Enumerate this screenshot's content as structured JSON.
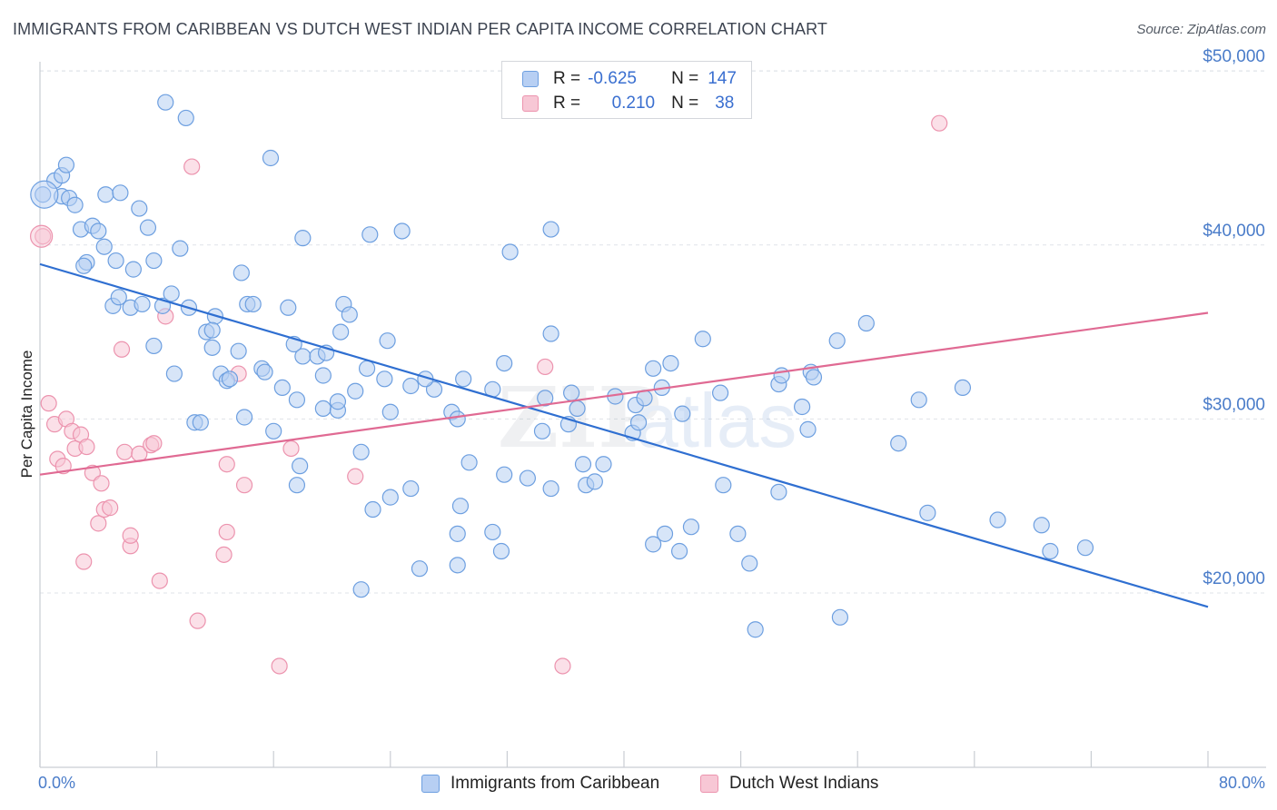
{
  "title": "IMMIGRANTS FROM CARIBBEAN VS DUTCH WEST INDIAN PER CAPITA INCOME CORRELATION CHART",
  "source": "Source: ZipAtlas.com",
  "watermark": {
    "zip": "ZIP",
    "atlas": "atlas"
  },
  "stats": {
    "caribbean": {
      "r_label": "R =",
      "r_value": "-0.625",
      "n_label": "N =",
      "n_value": "147"
    },
    "dutch": {
      "r_label": "R =",
      "r_value": "0.210",
      "n_label": "N =",
      "n_value": "38"
    }
  },
  "legend": {
    "caribbean": "Immigrants from Caribbean",
    "dutch": "Dutch West Indians"
  },
  "chart_data": {
    "type": "scatter",
    "title": "IMMIGRANTS FROM CARIBBEAN VS DUTCH WEST INDIAN PER CAPITA INCOME CORRELATION CHART",
    "xlabel": "",
    "ylabel": "Per Capita Income",
    "xlim": [
      0,
      80
    ],
    "ylim": [
      11000,
      52000
    ],
    "x_tick_labels": [
      "0.0%",
      "80.0%"
    ],
    "y_ticks": [
      20000,
      30000,
      40000,
      50000
    ],
    "y_tick_labels": [
      "$20,000",
      "$30,000",
      "$40,000",
      "$50,000"
    ],
    "grid": true,
    "legend_position": "bottom",
    "colors": {
      "caribbean": "#6d9fe0",
      "caribbean_fill": "#b7cff3",
      "caribbean_line": "#2f6fd1",
      "dutch": "#ec93ae",
      "dutch_fill": "#f7c7d5",
      "dutch_line": "#e06a93"
    },
    "series": [
      {
        "name": "Immigrants from Caribbean",
        "trend": {
          "x": [
            0,
            80
          ],
          "y": [
            38900,
            19200
          ]
        },
        "points": [
          [
            0.2,
            42900
          ],
          [
            1.0,
            43700
          ],
          [
            1.5,
            44000
          ],
          [
            1.8,
            44600
          ],
          [
            1.5,
            42800
          ],
          [
            2.0,
            42700
          ],
          [
            2.4,
            42300
          ],
          [
            4.5,
            42900
          ],
          [
            5.5,
            43000
          ],
          [
            6.8,
            42100
          ],
          [
            2.8,
            40900
          ],
          [
            3.6,
            41100
          ],
          [
            4.0,
            40800
          ],
          [
            7.4,
            41000
          ],
          [
            4.4,
            39900
          ],
          [
            9.6,
            39800
          ],
          [
            3.2,
            39000
          ],
          [
            3.0,
            38800
          ],
          [
            5.2,
            39100
          ],
          [
            6.4,
            38600
          ],
          [
            7.8,
            39100
          ],
          [
            8.6,
            48200
          ],
          [
            10.0,
            47300
          ],
          [
            15.8,
            45000
          ],
          [
            18.0,
            40400
          ],
          [
            22.6,
            40600
          ],
          [
            24.8,
            40800
          ],
          [
            32.2,
            39600
          ],
          [
            35.0,
            40900
          ],
          [
            13.8,
            38400
          ],
          [
            5.0,
            36500
          ],
          [
            5.4,
            37000
          ],
          [
            6.2,
            36400
          ],
          [
            7.0,
            36600
          ],
          [
            8.4,
            36500
          ],
          [
            9.0,
            37200
          ],
          [
            10.2,
            36400
          ],
          [
            12.0,
            35900
          ],
          [
            14.2,
            36600
          ],
          [
            14.6,
            36600
          ],
          [
            17.0,
            36400
          ],
          [
            20.8,
            36600
          ],
          [
            21.2,
            36000
          ],
          [
            11.4,
            35000
          ],
          [
            11.8,
            35100
          ],
          [
            20.6,
            35000
          ],
          [
            7.8,
            34200
          ],
          [
            11.8,
            34100
          ],
          [
            13.6,
            33900
          ],
          [
            17.4,
            34300
          ],
          [
            18.0,
            33600
          ],
          [
            19.0,
            33600
          ],
          [
            19.6,
            33800
          ],
          [
            23.8,
            34500
          ],
          [
            9.2,
            32600
          ],
          [
            12.4,
            32600
          ],
          [
            12.8,
            32200
          ],
          [
            13.0,
            32300
          ],
          [
            15.2,
            32900
          ],
          [
            15.4,
            32700
          ],
          [
            19.4,
            32500
          ],
          [
            22.4,
            32900
          ],
          [
            23.6,
            32300
          ],
          [
            29.0,
            32300
          ],
          [
            31.8,
            33200
          ],
          [
            34.4,
            29300
          ],
          [
            16.6,
            31800
          ],
          [
            17.6,
            31100
          ],
          [
            19.4,
            30600
          ],
          [
            20.4,
            30500
          ],
          [
            20.4,
            31000
          ],
          [
            21.6,
            31600
          ],
          [
            25.4,
            31900
          ],
          [
            27.0,
            31700
          ],
          [
            28.2,
            30400
          ],
          [
            28.6,
            30000
          ],
          [
            31.0,
            31700
          ],
          [
            34.6,
            31200
          ],
          [
            10.6,
            29800
          ],
          [
            11.0,
            29800
          ],
          [
            14.0,
            30100
          ],
          [
            16.0,
            29300
          ],
          [
            22.0,
            28100
          ],
          [
            24.0,
            30400
          ],
          [
            26.4,
            32300
          ],
          [
            29.4,
            27500
          ],
          [
            31.8,
            26800
          ],
          [
            33.4,
            26600
          ],
          [
            35.0,
            26000
          ],
          [
            36.2,
            29700
          ],
          [
            37.2,
            27400
          ],
          [
            36.8,
            30600
          ],
          [
            37.4,
            26200
          ],
          [
            38.0,
            26400
          ],
          [
            38.6,
            27400
          ],
          [
            17.6,
            26200
          ],
          [
            17.8,
            27300
          ],
          [
            22.8,
            24800
          ],
          [
            24.0,
            25500
          ],
          [
            25.4,
            26000
          ],
          [
            28.8,
            25000
          ],
          [
            28.6,
            23400
          ],
          [
            26.0,
            21400
          ],
          [
            28.6,
            21600
          ],
          [
            31.0,
            23500
          ],
          [
            31.6,
            22400
          ],
          [
            22.0,
            20200
          ],
          [
            35.0,
            34900
          ],
          [
            36.4,
            31500
          ],
          [
            39.4,
            31300
          ],
          [
            40.6,
            29200
          ],
          [
            40.8,
            30800
          ],
          [
            41.0,
            29800
          ],
          [
            41.4,
            31200
          ],
          [
            42.0,
            32900
          ],
          [
            42.6,
            31800
          ],
          [
            43.2,
            33200
          ],
          [
            44.0,
            30300
          ],
          [
            44.6,
            23800
          ],
          [
            45.4,
            34600
          ],
          [
            42.0,
            22800
          ],
          [
            42.8,
            23400
          ],
          [
            43.8,
            22400
          ],
          [
            46.8,
            26200
          ],
          [
            47.0,
            47800
          ],
          [
            47.8,
            23400
          ],
          [
            48.6,
            21700
          ],
          [
            49.0,
            17900
          ],
          [
            46.6,
            31500
          ],
          [
            50.6,
            25800
          ],
          [
            50.6,
            32000
          ],
          [
            50.8,
            32500
          ],
          [
            52.2,
            30700
          ],
          [
            52.6,
            29400
          ],
          [
            52.8,
            32700
          ],
          [
            53.0,
            32400
          ],
          [
            54.6,
            34500
          ],
          [
            54.8,
            18600
          ],
          [
            56.6,
            35500
          ],
          [
            58.8,
            28600
          ],
          [
            60.2,
            31100
          ],
          [
            60.8,
            24600
          ],
          [
            63.2,
            31800
          ],
          [
            65.6,
            24200
          ],
          [
            68.6,
            23900
          ],
          [
            69.2,
            22400
          ],
          [
            71.6,
            22600
          ]
        ]
      },
      {
        "name": "Dutch West Indians",
        "trend": {
          "x": [
            0,
            80
          ],
          "y": [
            26800,
            36100
          ]
        },
        "points": [
          [
            0.2,
            40500
          ],
          [
            0.6,
            30900
          ],
          [
            1.0,
            29700
          ],
          [
            1.2,
            27700
          ],
          [
            1.6,
            27300
          ],
          [
            1.8,
            30000
          ],
          [
            2.2,
            29300
          ],
          [
            2.4,
            28300
          ],
          [
            2.8,
            29100
          ],
          [
            3.2,
            28400
          ],
          [
            3.0,
            21800
          ],
          [
            3.6,
            26900
          ],
          [
            4.0,
            24000
          ],
          [
            4.2,
            26300
          ],
          [
            4.4,
            24800
          ],
          [
            4.8,
            24900
          ],
          [
            5.6,
            34000
          ],
          [
            5.8,
            28100
          ],
          [
            6.2,
            22700
          ],
          [
            6.2,
            23300
          ],
          [
            6.8,
            28000
          ],
          [
            7.6,
            28500
          ],
          [
            7.8,
            28600
          ],
          [
            8.2,
            20700
          ],
          [
            8.6,
            35900
          ],
          [
            10.4,
            44500
          ],
          [
            10.8,
            18400
          ],
          [
            12.8,
            27400
          ],
          [
            12.8,
            23500
          ],
          [
            12.6,
            22200
          ],
          [
            13.6,
            32600
          ],
          [
            14.0,
            26200
          ],
          [
            16.4,
            15800
          ],
          [
            17.2,
            28300
          ],
          [
            21.6,
            26700
          ],
          [
            34.6,
            33000
          ],
          [
            35.8,
            15800
          ],
          [
            61.6,
            47000
          ]
        ]
      }
    ]
  }
}
